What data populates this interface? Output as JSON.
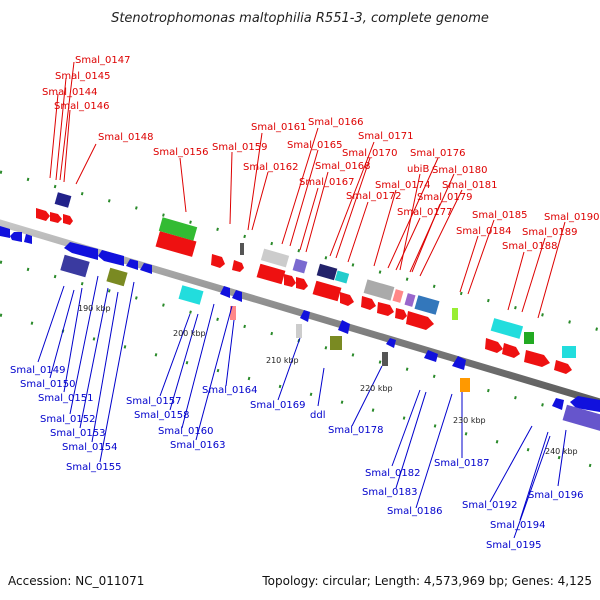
{
  "title": "Stenotrophomonas maltophilia R551-3, complete genome",
  "footer": {
    "accession": "Accession: NC_011071",
    "summary": "Topology: circular; Length: 4,573,969 bp; Genes: 4,125"
  },
  "colors": {
    "forward_label": "#dd0000",
    "reverse_label": "#0000cc",
    "backbone": "#888888"
  },
  "ticks": [
    "190 kbp",
    "200 kbp",
    "210 kbp",
    "220 kbp",
    "230 kbp",
    "240 kbp"
  ],
  "forward_labels": [
    "Smal_0147",
    "Smal_0145",
    "Smal_0144",
    "Smal_0146",
    "Smal_0148",
    "Smal_0156",
    "Smal_0161",
    "Smal_0159",
    "Smal_0162",
    "Smal_0166",
    "Smal_0165",
    "Smal_0171",
    "Smal_0170",
    "Smal_0168",
    "Smal_0167",
    "Smal_0172",
    "Smal_0176",
    "ubiB",
    "Smal_0174",
    "Smal_0180",
    "Smal_0181",
    "Smal_0179",
    "Smal_0177",
    "Smal_0185",
    "Smal_0184",
    "Smal_0190",
    "Smal_0189",
    "Smal_0188"
  ],
  "reverse_labels": [
    "Smal_0149",
    "Smal_0150",
    "Smal_0151",
    "Smal_0152",
    "Smal_0153",
    "Smal_0154",
    "Smal_0155",
    "Smal_0157",
    "Smal_0158",
    "Smal_0160",
    "Smal_0163",
    "Smal_0164",
    "Smal_0169",
    "ddl",
    "Smal_0178",
    "Smal_0182",
    "Smal_0183",
    "Smal_0186",
    "Smal_0187",
    "Smal_0192",
    "Smal_0194",
    "Smal_0195",
    "Smal_0196"
  ]
}
